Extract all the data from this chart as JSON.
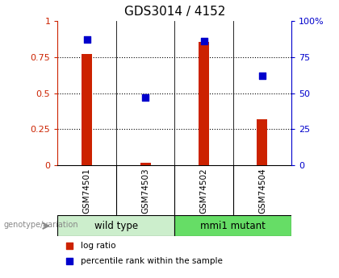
{
  "title": "GDS3014 / 4152",
  "samples": [
    "GSM74501",
    "GSM74503",
    "GSM74502",
    "GSM74504"
  ],
  "log_ratio": [
    0.77,
    0.02,
    0.855,
    0.32
  ],
  "percentile_rank": [
    0.87,
    0.47,
    0.86,
    0.62
  ],
  "bar_color": "#cc2200",
  "dot_color": "#0000cc",
  "ylim_left": [
    0,
    1
  ],
  "ylim_right": [
    0,
    100
  ],
  "yticks_left": [
    0,
    0.25,
    0.5,
    0.75,
    1.0
  ],
  "ytick_labels_left": [
    "0",
    "0.25",
    "0.5",
    "0.75",
    "1"
  ],
  "yticks_right": [
    0,
    25,
    50,
    75,
    100
  ],
  "ytick_labels_right": [
    "0",
    "25",
    "50",
    "75",
    "100%"
  ],
  "groups": [
    {
      "label": "wild type",
      "indices": [
        0,
        1
      ],
      "color": "#cceecc"
    },
    {
      "label": "mmi1 mutant",
      "indices": [
        2,
        3
      ],
      "color": "#66dd66"
    }
  ],
  "legend_items": [
    {
      "label": "log ratio",
      "color": "#cc2200"
    },
    {
      "label": "percentile rank within the sample",
      "color": "#0000cc"
    }
  ],
  "genotype_label": "genotype/variation",
  "bar_width": 0.18,
  "dot_size": 35,
  "left_axis_color": "#cc2200",
  "right_axis_color": "#0000cc",
  "bg_color": "#ffffff",
  "label_area_color": "#cccccc"
}
